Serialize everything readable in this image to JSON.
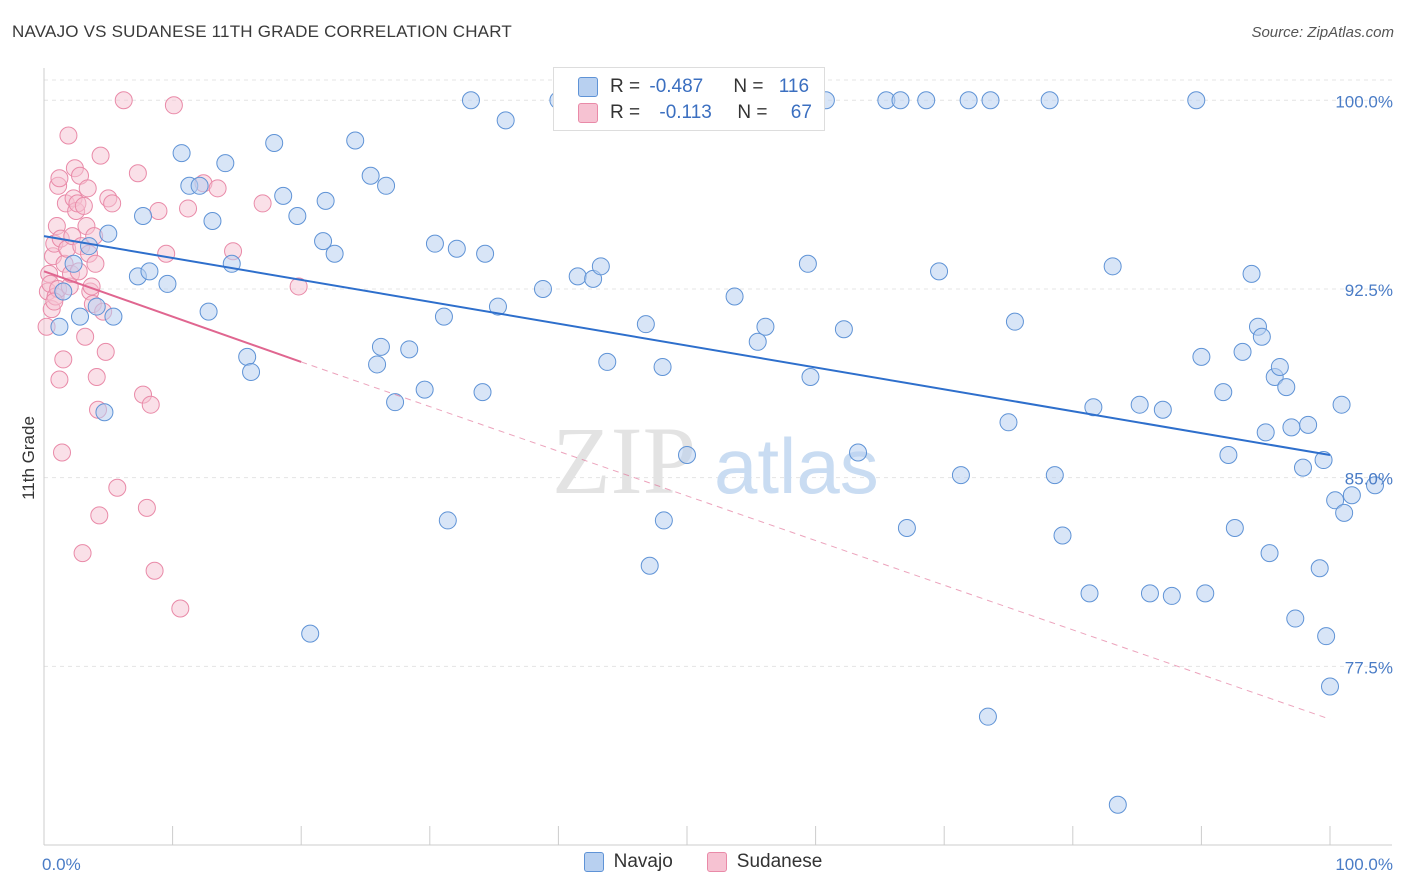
{
  "title": "NAVAJO VS SUDANESE 11TH GRADE CORRELATION CHART",
  "source": "Source: ZipAtlas.com",
  "colors": {
    "navajo_fill": "#b8d0f0",
    "navajo_stroke": "#5f93d6",
    "navajo_line": "#2e6fcc",
    "sudanese_fill": "#f6c2d2",
    "sudanese_stroke": "#e98aa8",
    "sudanese_line": "#e06690",
    "tick_label": "#4a7cc6"
  },
  "legend": {
    "navajo": {
      "r_label": "R = ",
      "r_value": "-0.487",
      "n_label": "N = ",
      "n_value": "116"
    },
    "sudanese": {
      "r_label": "R = ",
      "r_value": "-0.113",
      "n_label": "N = ",
      "n_value": "67"
    }
  },
  "bottom_legend": {
    "navajo": "Navajo",
    "sudanese": "Sudanese"
  },
  "watermark": {
    "zip": "ZIP",
    "atlas": "atlas"
  },
  "chart_data": {
    "type": "scatter",
    "title": "NAVAJO VS SUDANESE 11TH GRADE CORRELATION CHART",
    "ylabel": "11th Grade",
    "xlabel": "",
    "xlim": [
      0,
      100
    ],
    "ylim": [
      70.4,
      101.6
    ],
    "x_tick_labels": [
      {
        "value": 0,
        "label": "0.0%"
      },
      {
        "value": 100,
        "label": "100.0%"
      }
    ],
    "y_tick_labels": [
      {
        "value": 100.0,
        "label": "100.0%"
      },
      {
        "value": 92.5,
        "label": "92.5%"
      },
      {
        "value": 85.0,
        "label": "85.0%"
      },
      {
        "value": 77.5,
        "label": "77.5%"
      }
    ],
    "grid": true,
    "legend_position": "top-center",
    "series": [
      {
        "name": "Navajo",
        "R": -0.487,
        "N": 116,
        "trend": {
          "x": [
            0,
            100
          ],
          "y": [
            94.6,
            85.9
          ],
          "dashed_ext": null
        },
        "points": [
          [
            1.2,
            91.0
          ],
          [
            1.5,
            92.4
          ],
          [
            2.3,
            93.5
          ],
          [
            2.8,
            91.4
          ],
          [
            3.5,
            94.2
          ],
          [
            4.1,
            91.8
          ],
          [
            4.7,
            87.6
          ],
          [
            5.0,
            94.7
          ],
          [
            5.4,
            91.4
          ],
          [
            7.3,
            93.0
          ],
          [
            7.7,
            95.4
          ],
          [
            8.2,
            93.2
          ],
          [
            9.6,
            92.7
          ],
          [
            10.7,
            97.9
          ],
          [
            11.3,
            96.6
          ],
          [
            12.1,
            96.6
          ],
          [
            12.8,
            91.6
          ],
          [
            13.1,
            95.2
          ],
          [
            14.1,
            97.5
          ],
          [
            14.6,
            93.5
          ],
          [
            15.8,
            89.8
          ],
          [
            16.1,
            89.2
          ],
          [
            17.9,
            98.3
          ],
          [
            18.6,
            96.2
          ],
          [
            19.7,
            95.4
          ],
          [
            20.7,
            78.8
          ],
          [
            21.7,
            94.4
          ],
          [
            21.9,
            96.0
          ],
          [
            22.6,
            93.9
          ],
          [
            24.2,
            98.4
          ],
          [
            25.4,
            97.0
          ],
          [
            25.9,
            89.5
          ],
          [
            26.2,
            90.2
          ],
          [
            26.6,
            96.6
          ],
          [
            27.3,
            88.0
          ],
          [
            28.4,
            90.1
          ],
          [
            29.6,
            88.5
          ],
          [
            30.4,
            94.3
          ],
          [
            31.1,
            91.4
          ],
          [
            31.4,
            83.3
          ],
          [
            32.1,
            94.1
          ],
          [
            33.2,
            100.0
          ],
          [
            34.1,
            88.4
          ],
          [
            34.3,
            93.9
          ],
          [
            35.3,
            91.8
          ],
          [
            35.9,
            99.2
          ],
          [
            38.8,
            92.5
          ],
          [
            40.0,
            100.0
          ],
          [
            41.5,
            93.0
          ],
          [
            42.7,
            92.9
          ],
          [
            43.3,
            93.4
          ],
          [
            43.8,
            89.6
          ],
          [
            44.5,
            100.0
          ],
          [
            46.8,
            91.1
          ],
          [
            47.1,
            81.5
          ],
          [
            48.1,
            89.4
          ],
          [
            48.2,
            83.3
          ],
          [
            50.0,
            85.9
          ],
          [
            51.0,
            100.0
          ],
          [
            51.7,
            100.0
          ],
          [
            53.7,
            92.2
          ],
          [
            55.5,
            90.4
          ],
          [
            56.1,
            91.0
          ],
          [
            59.4,
            93.5
          ],
          [
            59.6,
            89.0
          ],
          [
            60.8,
            100.0
          ],
          [
            62.2,
            90.9
          ],
          [
            63.3,
            86.0
          ],
          [
            65.5,
            100.0
          ],
          [
            66.6,
            100.0
          ],
          [
            67.1,
            83.0
          ],
          [
            68.6,
            100.0
          ],
          [
            69.6,
            93.2
          ],
          [
            71.3,
            85.1
          ],
          [
            71.9,
            100.0
          ],
          [
            73.4,
            75.5
          ],
          [
            73.6,
            100.0
          ],
          [
            75.0,
            87.2
          ],
          [
            75.5,
            91.2
          ],
          [
            78.2,
            100.0
          ],
          [
            78.6,
            85.1
          ],
          [
            79.2,
            82.7
          ],
          [
            81.3,
            80.4
          ],
          [
            81.6,
            87.8
          ],
          [
            83.1,
            93.4
          ],
          [
            83.5,
            72.0
          ],
          [
            85.2,
            87.9
          ],
          [
            86.0,
            80.4
          ],
          [
            87.0,
            87.7
          ],
          [
            87.7,
            80.3
          ],
          [
            89.6,
            100.0
          ],
          [
            90.0,
            89.8
          ],
          [
            90.3,
            80.4
          ],
          [
            91.7,
            88.4
          ],
          [
            92.1,
            85.9
          ],
          [
            92.6,
            83.0
          ],
          [
            93.2,
            90.0
          ],
          [
            93.9,
            93.1
          ],
          [
            94.4,
            91.0
          ],
          [
            94.7,
            90.6
          ],
          [
            95.0,
            86.8
          ],
          [
            95.3,
            82.0
          ],
          [
            95.7,
            89.0
          ],
          [
            96.1,
            89.4
          ],
          [
            96.6,
            88.6
          ],
          [
            97.0,
            87.0
          ],
          [
            97.3,
            79.4
          ],
          [
            97.9,
            85.4
          ],
          [
            98.3,
            87.1
          ],
          [
            99.2,
            81.4
          ],
          [
            99.5,
            85.7
          ],
          [
            99.7,
            78.7
          ],
          [
            100.0,
            76.7
          ],
          [
            100.4,
            84.1
          ],
          [
            100.9,
            87.9
          ],
          [
            101.1,
            83.6
          ],
          [
            101.7,
            84.3
          ],
          [
            103.5,
            84.7
          ]
        ]
      },
      {
        "name": "Sudanese",
        "R": -0.113,
        "N": 67,
        "trend": {
          "x": [
            0,
            20
          ],
          "y": [
            93.2,
            89.6
          ],
          "dashed_ext": {
            "x": [
              20,
              100
            ],
            "y": [
              89.6,
              75.4
            ]
          }
        },
        "points": [
          [
            0.2,
            91.0
          ],
          [
            0.3,
            92.4
          ],
          [
            0.4,
            93.1
          ],
          [
            0.5,
            92.7
          ],
          [
            0.6,
            91.7
          ],
          [
            0.7,
            93.8
          ],
          [
            0.8,
            94.3
          ],
          [
            0.9,
            92.2
          ],
          [
            1.0,
            95.0
          ],
          [
            1.1,
            96.6
          ],
          [
            1.1,
            92.5
          ],
          [
            1.2,
            88.9
          ],
          [
            1.3,
            94.5
          ],
          [
            1.4,
            86.0
          ],
          [
            1.5,
            89.7
          ],
          [
            1.6,
            93.5
          ],
          [
            1.7,
            95.9
          ],
          [
            1.8,
            94.1
          ],
          [
            1.9,
            98.6
          ],
          [
            2.0,
            92.6
          ],
          [
            2.1,
            93.1
          ],
          [
            2.2,
            94.6
          ],
          [
            2.3,
            96.1
          ],
          [
            2.4,
            97.3
          ],
          [
            2.5,
            95.6
          ],
          [
            2.6,
            95.9
          ],
          [
            2.7,
            93.2
          ],
          [
            2.8,
            97.0
          ],
          [
            2.9,
            94.2
          ],
          [
            3.0,
            82.0
          ],
          [
            3.1,
            95.8
          ],
          [
            3.2,
            90.6
          ],
          [
            3.3,
            95.0
          ],
          [
            3.4,
            96.5
          ],
          [
            3.5,
            93.9
          ],
          [
            3.6,
            92.4
          ],
          [
            3.7,
            92.6
          ],
          [
            3.8,
            91.9
          ],
          [
            3.9,
            94.6
          ],
          [
            4.0,
            93.5
          ],
          [
            4.1,
            89.0
          ],
          [
            4.2,
            87.7
          ],
          [
            4.3,
            83.5
          ],
          [
            4.4,
            97.8
          ],
          [
            4.6,
            91.6
          ],
          [
            4.8,
            90.0
          ],
          [
            5.0,
            96.1
          ],
          [
            5.3,
            95.9
          ],
          [
            5.7,
            84.6
          ],
          [
            6.2,
            100.0
          ],
          [
            7.3,
            97.1
          ],
          [
            7.7,
            88.3
          ],
          [
            8.0,
            83.8
          ],
          [
            8.3,
            87.9
          ],
          [
            8.6,
            81.3
          ],
          [
            8.9,
            95.6
          ],
          [
            9.5,
            93.9
          ],
          [
            10.1,
            99.8
          ],
          [
            10.6,
            79.8
          ],
          [
            11.2,
            95.7
          ],
          [
            12.4,
            96.7
          ],
          [
            13.5,
            96.5
          ],
          [
            14.7,
            94.0
          ],
          [
            17.0,
            95.9
          ],
          [
            19.8,
            92.6
          ],
          [
            0.8,
            92.0
          ],
          [
            1.2,
            96.9
          ]
        ]
      }
    ]
  }
}
